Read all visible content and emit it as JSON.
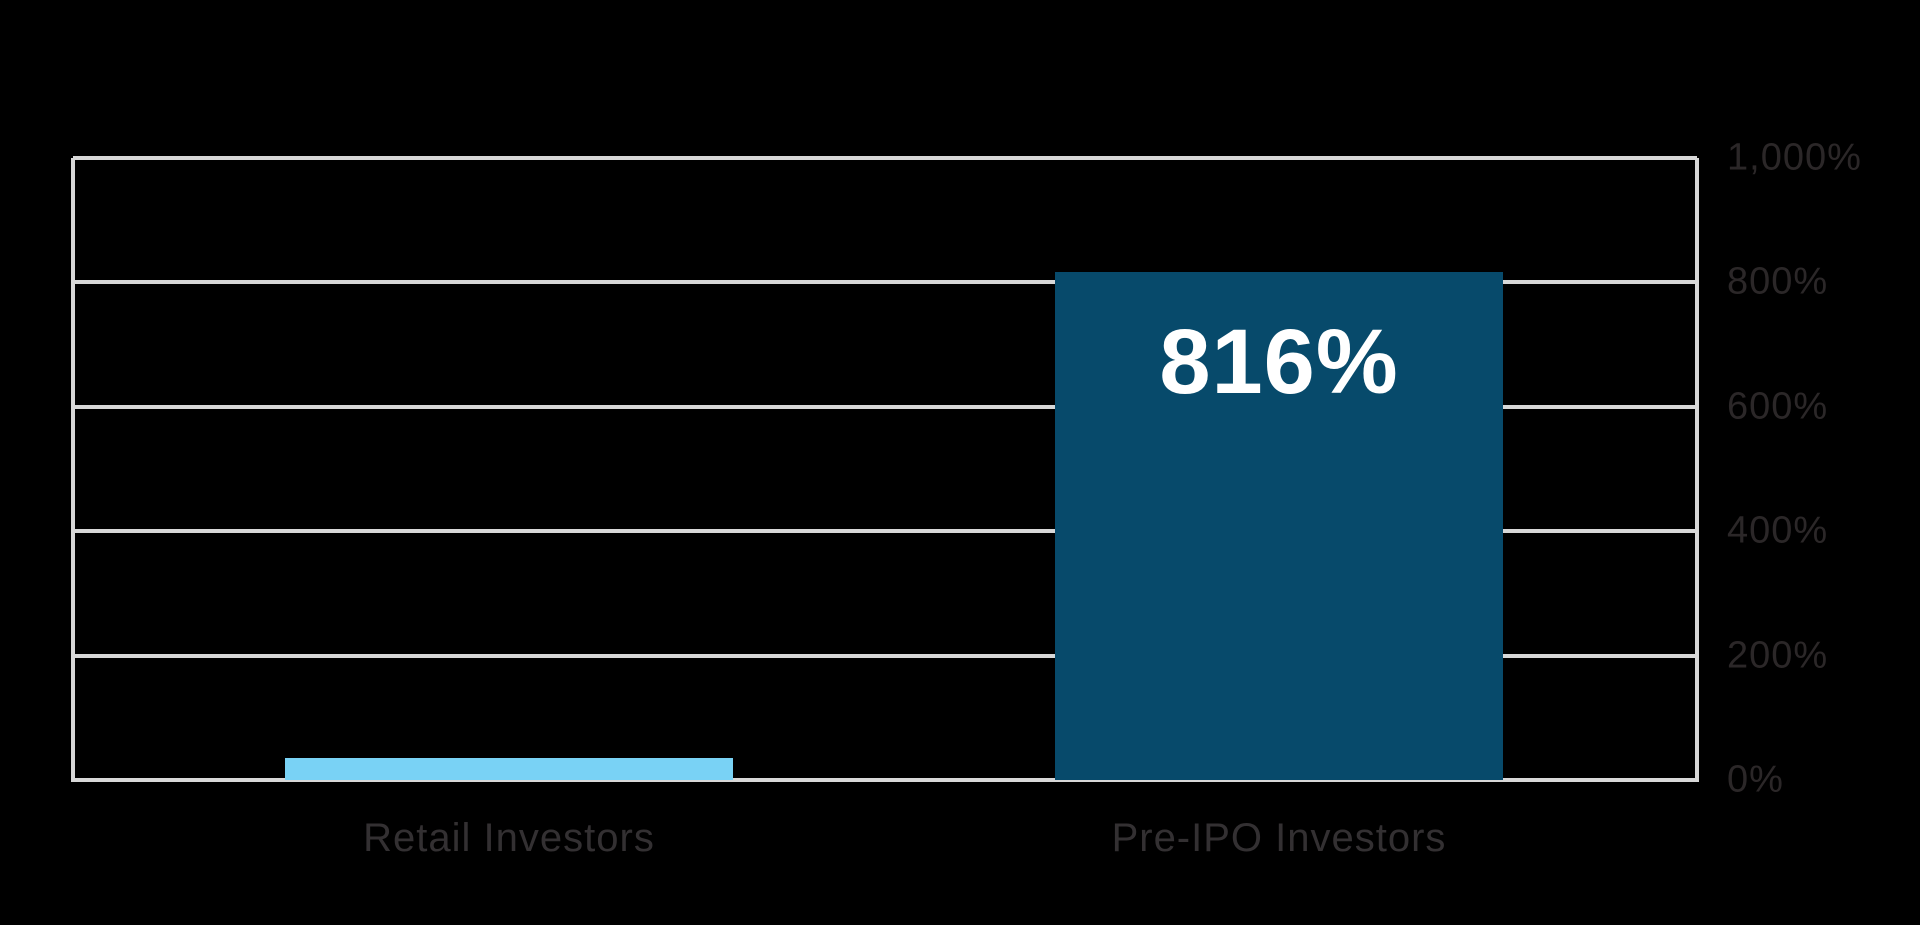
{
  "chart_data": {
    "type": "bar",
    "title": "",
    "categories": [
      "Retail Investors",
      "Pre-IPO Investors"
    ],
    "values": [
      35,
      816
    ],
    "value_labels": [
      "",
      "816%"
    ],
    "bar_colors": [
      "#79d2f5",
      "#074a6b"
    ],
    "yticks": [
      0,
      200,
      400,
      600,
      800,
      1000
    ],
    "ytick_labels": [
      "0%",
      "200%",
      "400%",
      "600%",
      "800%",
      "1,000%"
    ],
    "ylim": [
      0,
      1000
    ],
    "grid": true,
    "gridline_color": "#d8d8d8",
    "ytick_side": "right",
    "legend": "none",
    "background_color": "#000000",
    "tick_label_color": "#2b2728",
    "category_label_color": "#333032",
    "value_label_color": "#ffffff"
  }
}
